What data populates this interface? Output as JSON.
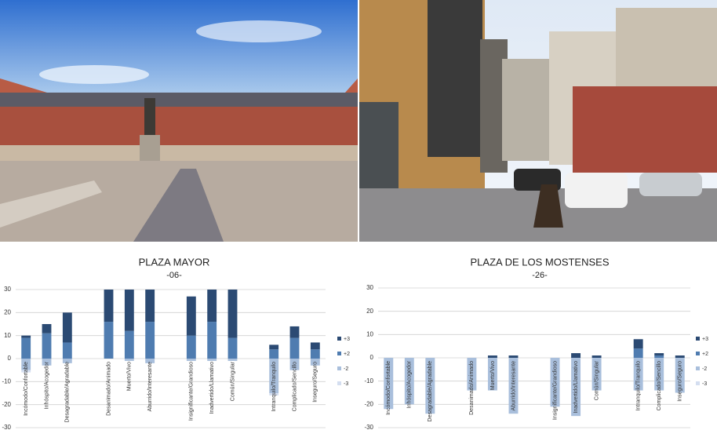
{
  "chart_data": [
    {
      "type": "bar",
      "stacked": true,
      "title": "PLAZA MAYOR",
      "subtitle": "-06-",
      "categories": [
        "Incómodo/Confortable",
        "Inhóspito/Acogedor",
        "Desagradable/Agradable",
        null,
        "Desanimado/Animado",
        "Muerto/Vivo",
        "Aburrido/Interesante",
        null,
        "Insignificante/Grandioso",
        "Inadvertido/Llamativo",
        "Común/Singular",
        null,
        "Intranquilo/Tranquilo",
        "Complicado/Sencillo",
        "Inseguro/Seguro"
      ],
      "series": [
        {
          "name": "+3",
          "color": "#2b4a73",
          "values": [
            1,
            4,
            13,
            null,
            14,
            18,
            14,
            null,
            17,
            14,
            21,
            null,
            2,
            5,
            3
          ]
        },
        {
          "name": "+2",
          "color": "#4f7cb0",
          "values": [
            9,
            11,
            7,
            null,
            16,
            12,
            16,
            null,
            10,
            16,
            9,
            null,
            4,
            9,
            4
          ]
        },
        {
          "name": "-2",
          "color": "#a9bfdc",
          "values": [
            -5,
            -3,
            -2,
            null,
            0,
            -1,
            -2,
            null,
            -1,
            -1,
            -1,
            null,
            -15,
            -5,
            -3
          ]
        },
        {
          "name": "-3",
          "color": "#d4def0",
          "values": [
            -1,
            0,
            0,
            null,
            0,
            0,
            0,
            null,
            0,
            0,
            0,
            null,
            -1,
            0,
            0
          ]
        }
      ],
      "ylim": [
        -30,
        30
      ],
      "yticks": [
        -30,
        -20,
        -10,
        0,
        10,
        20,
        30
      ],
      "grid": true,
      "legend": "right"
    },
    {
      "type": "bar",
      "stacked": true,
      "title": "PLAZA DE LOS MOSTENSES",
      "subtitle": "-26-",
      "categories": [
        "Incómodo/Confortable",
        "Inhóspito/Acogedor",
        "Desagradable/Agradable",
        null,
        "Desanimado/Animado",
        "Muerto/Vivo",
        "Aburrido/Interesante",
        null,
        "Insignificante/Grandioso",
        "Inadvertido/Llamativo",
        "Común/Singular",
        null,
        "Intranquilo/Tranquilo",
        "Complicado/Sencillo",
        "Inseguro/Seguro"
      ],
      "series": [
        {
          "name": "+3",
          "color": "#2b4a73",
          "values": [
            0,
            0,
            0,
            null,
            0,
            1,
            1,
            null,
            0,
            2,
            1,
            null,
            4,
            1,
            1
          ]
        },
        {
          "name": "+2",
          "color": "#4f7cb0",
          "values": [
            0,
            0,
            0,
            null,
            0,
            0,
            0,
            null,
            0,
            0,
            0,
            null,
            4,
            1,
            0
          ]
        },
        {
          "name": "-2",
          "color": "#a9bfdc",
          "values": [
            -22,
            -20,
            -24,
            null,
            -14,
            -14,
            -24,
            null,
            -21,
            -25,
            -14,
            null,
            -14,
            -14,
            -15
          ]
        },
        {
          "name": "-3",
          "color": "#d4def0",
          "values": [
            0,
            0,
            0,
            null,
            0,
            0,
            0,
            null,
            0,
            0,
            0,
            null,
            0,
            0,
            0
          ]
        }
      ],
      "ylim": [
        -30,
        30
      ],
      "yticks": [
        -30,
        -20,
        -10,
        0,
        10,
        20,
        30
      ],
      "grid": true,
      "legend": "right"
    }
  ]
}
